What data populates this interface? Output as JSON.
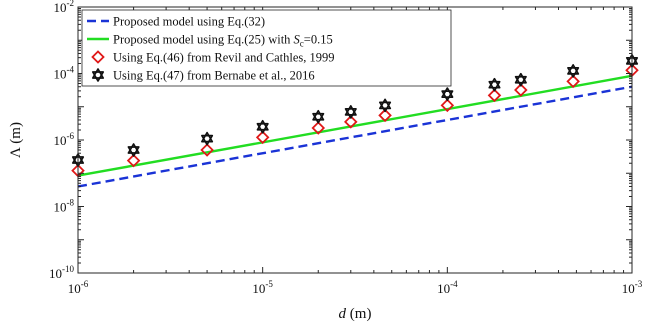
{
  "chart_data": {
    "type": "line",
    "x_scale": "log",
    "y_scale": "log",
    "xlim": [
      1e-06,
      0.001
    ],
    "ylim": [
      1e-10,
      0.01
    ],
    "grid": false,
    "legend_position": "top-left",
    "xlabel": {
      "symbol": "d",
      "unit": " (m)"
    },
    "ylabel": {
      "symbol": "Λ",
      "unit": " (m)"
    },
    "x_ticks": [
      {
        "value": 1e-06,
        "base": "10",
        "exp": "-6"
      },
      {
        "value": 1e-05,
        "base": "10",
        "exp": "-5"
      },
      {
        "value": 0.0001,
        "base": "10",
        "exp": "-4"
      },
      {
        "value": 0.001,
        "base": "10",
        "exp": "-3"
      }
    ],
    "y_ticks": [
      {
        "value": 1e-10,
        "base": "10",
        "exp": "-10"
      },
      {
        "value": 1e-08,
        "base": "10",
        "exp": "-8"
      },
      {
        "value": 1e-06,
        "base": "10",
        "exp": "-6"
      },
      {
        "value": 0.0001,
        "base": "10",
        "exp": "-4"
      },
      {
        "value": 0.01,
        "base": "10",
        "exp": "-2"
      }
    ],
    "series": [
      {
        "name": "Proposed model using Eq.(32)",
        "style": "dashed-line",
        "color": "#1a33d6",
        "x": [
          1e-06,
          0.001
        ],
        "y": [
          4e-08,
          4e-05
        ]
      },
      {
        "name_parts": [
          "Proposed model using Eq.(25) with ",
          "S",
          "c",
          "=0.15"
        ],
        "style": "solid-line",
        "color": "#22dd22",
        "x": [
          1e-06,
          0.001
        ],
        "y": [
          8.5e-08,
          8.5e-05
        ]
      },
      {
        "name": "Using Eq.(46) from Revil and Cathles, 1999",
        "style": "diamond",
        "color": "#e01818",
        "x": [
          1e-06,
          2e-06,
          5e-06,
          1e-05,
          2e-05,
          3e-05,
          4.6e-05,
          0.0001,
          0.00018,
          0.00025,
          0.00048,
          0.001
        ],
        "y": [
          1.2e-07,
          2.4e-07,
          5e-07,
          1.2e-06,
          2.3e-06,
          3.5e-06,
          5.5e-06,
          1.1e-05,
          2.2e-05,
          3.2e-05,
          5.8e-05,
          0.000125
        ]
      },
      {
        "name": "Using Eq.(47) from Bernabe et al., 2016",
        "style": "hexagram",
        "color": "#111111",
        "x": [
          1e-06,
          2e-06,
          5e-06,
          1e-05,
          2e-05,
          3e-05,
          4.6e-05,
          0.0001,
          0.00018,
          0.00025,
          0.00048,
          0.001
        ],
        "y": [
          2.5e-07,
          5e-07,
          1.1e-06,
          2.5e-06,
          5e-06,
          7e-06,
          1.1e-05,
          2.4e-05,
          4.6e-05,
          6.5e-05,
          0.00012,
          0.00024
        ]
      }
    ]
  }
}
